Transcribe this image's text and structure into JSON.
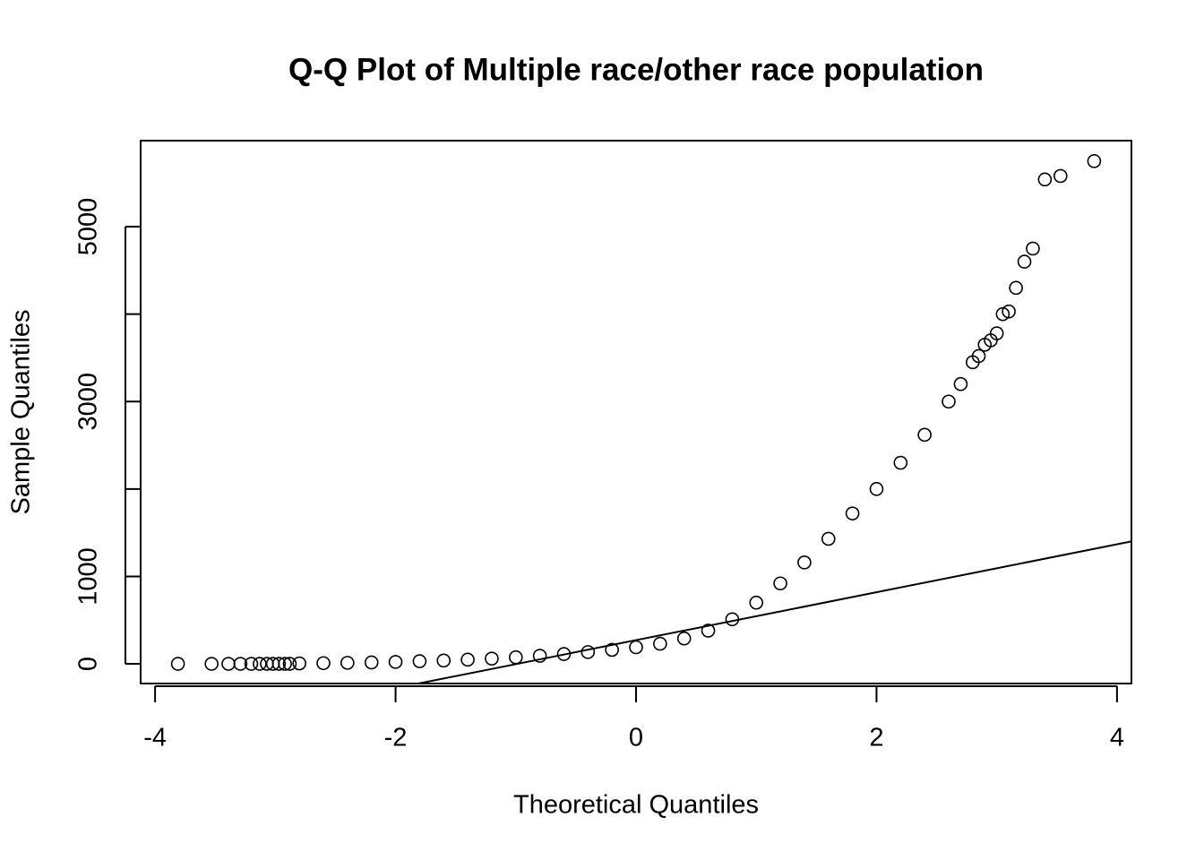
{
  "chart_data": {
    "type": "scatter",
    "title": "Q-Q Plot of Multiple race/other race population",
    "x_label": "Theoretical Quantiles",
    "y_label": "Sample Quantiles",
    "x": [
      -3.81,
      -3.53,
      -3.39,
      -3.29,
      -3.2,
      -3.13,
      -3.07,
      -3.02,
      -2.97,
      -2.92,
      -2.88,
      -2.8,
      -2.6,
      -2.4,
      -2.2,
      -2.0,
      -1.8,
      -1.6,
      -1.4,
      -1.2,
      -1.0,
      -0.8,
      -0.6,
      -0.4,
      -0.2,
      0,
      0.2,
      0.4,
      0.6,
      0.8,
      1.0,
      1.2,
      1.4,
      1.6,
      1.8,
      2.0,
      2.2,
      2.4,
      2.6,
      2.7,
      2.8,
      2.85,
      2.9,
      2.95,
      3.0,
      3.05,
      3.1,
      3.16,
      3.23,
      3.3,
      3.4,
      3.53,
      3.81
    ],
    "values": [
      0,
      0,
      0,
      0,
      0,
      0,
      0,
      0,
      0,
      0,
      0,
      5,
      8,
      12,
      16,
      22,
      30,
      38,
      48,
      60,
      75,
      92,
      112,
      135,
      160,
      190,
      230,
      290,
      380,
      510,
      700,
      920,
      1160,
      1430,
      1720,
      2000,
      2300,
      2620,
      3000,
      3200,
      3450,
      3520,
      3650,
      3700,
      3780,
      4000,
      4030,
      4300,
      4600,
      4750,
      5540,
      5580,
      5750
    ],
    "color": "#000000",
    "reference_line": {
      "x": [
        -1.81,
        4.12
      ],
      "y": [
        -225,
        1400
      ]
    },
    "xlim": [
      -4.12,
      4.12
    ],
    "ylim": [
      -225,
      5984
    ],
    "xticks": [
      -4,
      -2,
      0,
      2,
      4
    ],
    "yticks": [
      0,
      1000,
      3000,
      5000
    ],
    "minor_yticks": [
      2000,
      4000
    ],
    "grid": false
  }
}
